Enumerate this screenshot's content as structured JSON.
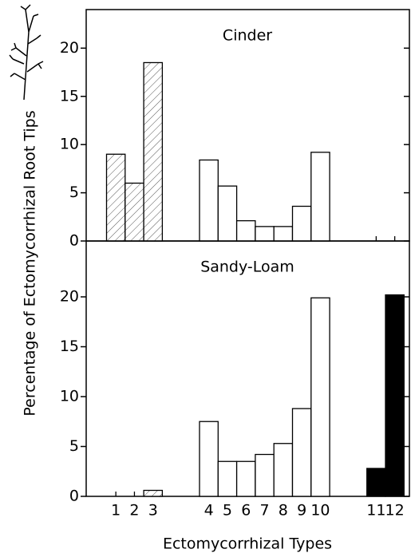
{
  "ylabel": "Percentage of Ectomycorrhizal Root Tips",
  "chart_data": [
    {
      "type": "bar",
      "title": "Cinder",
      "values": [
        9,
        6,
        18.5,
        null,
        null,
        8.4,
        5.7,
        2.1,
        1.5,
        1.5,
        3.6,
        9.2,
        null,
        null,
        0,
        0
      ],
      "fills": [
        "hatch",
        "hatch",
        "hatch",
        null,
        null,
        "#ffffff",
        "#ffffff",
        "#ffffff",
        "#ffffff",
        "#ffffff",
        "#ffffff",
        "#ffffff",
        null,
        null,
        "#000000",
        "#000000"
      ],
      "ylim": [
        0,
        24
      ],
      "yticks": [
        0,
        5,
        10,
        15,
        20
      ]
    },
    {
      "type": "bar",
      "title": "Sandy-Loam",
      "xlabel": "Ectomycorrhizal Types",
      "categories": [
        "1",
        "2",
        "3",
        null,
        null,
        "4",
        "5",
        "6",
        "7",
        "8",
        "9",
        "10",
        null,
        null,
        "11",
        "12"
      ],
      "values": [
        0,
        0,
        0.6,
        null,
        null,
        7.5,
        3.5,
        3.5,
        4.2,
        5.3,
        8.8,
        19.9,
        null,
        null,
        2.8,
        20.2
      ],
      "fills": [
        "hatch",
        "hatch",
        "hatch",
        null,
        null,
        "#ffffff",
        "#ffffff",
        "#ffffff",
        "#ffffff",
        "#ffffff",
        "#ffffff",
        "#ffffff",
        null,
        null,
        "#000000",
        "#000000"
      ],
      "ylim": [
        0,
        25.6
      ],
      "yticks": [
        0,
        5,
        10,
        15,
        20
      ]
    }
  ]
}
